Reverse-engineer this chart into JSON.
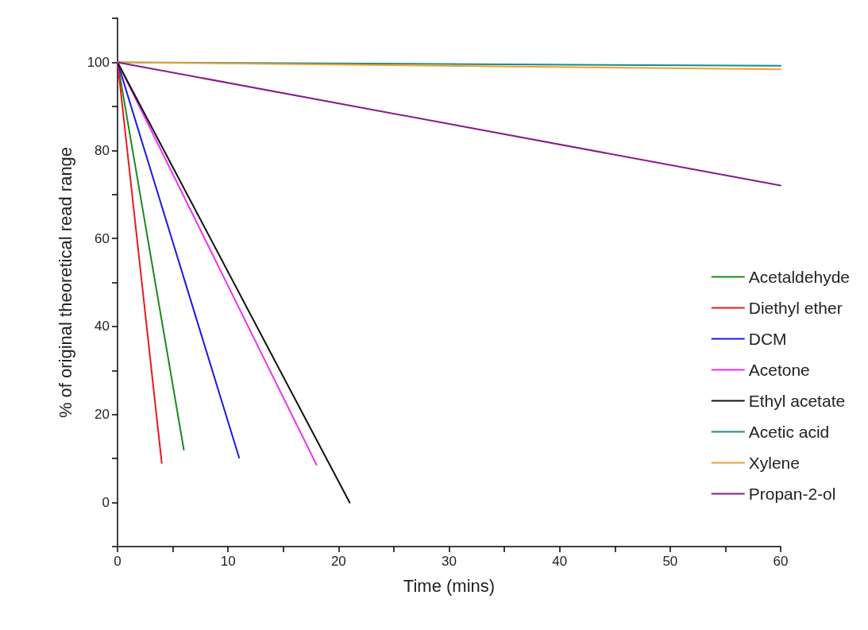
{
  "chart_data": {
    "type": "line",
    "xlabel": "Time (mins)",
    "ylabel": "% of original theoretical read range",
    "xlim": [
      0,
      60
    ],
    "xticks": [
      0,
      {
        "value": 5,
        "label": null
      },
      10,
      {
        "value": 15,
        "label": null
      },
      20,
      {
        "value": 25,
        "label": null
      },
      30,
      {
        "value": 35,
        "label": null
      },
      40,
      {
        "value": 45,
        "label": null
      },
      50,
      {
        "value": 55,
        "label": null
      },
      60
    ],
    "ylim": [
      -10,
      110
    ],
    "yticks": [
      {
        "value": -10,
        "label": null
      },
      0,
      {
        "value": 10,
        "label": null
      },
      20,
      {
        "value": 30,
        "label": null
      },
      40,
      {
        "value": 50,
        "label": null
      },
      60,
      {
        "value": 70,
        "label": null
      },
      80,
      {
        "value": 90,
        "label": null
      },
      100,
      {
        "value": 110,
        "label": null
      }
    ],
    "grid": false,
    "legend": "right",
    "marker": "none",
    "line_style": "solid",
    "series": [
      {
        "name": "Acetaldehyde",
        "color": "#1a8a1a",
        "x": [
          0,
          6
        ],
        "values": [
          100,
          12
        ]
      },
      {
        "name": "Diethyl ether",
        "color": "#e8191e",
        "x": [
          0,
          4
        ],
        "values": [
          100,
          9
        ]
      },
      {
        "name": "DCM",
        "color": "#1a1ae6",
        "x": [
          0,
          11
        ],
        "values": [
          100,
          10.2
        ]
      },
      {
        "name": "Acetone",
        "color": "#f030f0",
        "x": [
          0,
          18
        ],
        "values": [
          100,
          8.6
        ]
      },
      {
        "name": "Ethyl acetate",
        "color": "#111111",
        "x": [
          0,
          21
        ],
        "values": [
          100,
          0
        ]
      },
      {
        "name": "Acetic acid",
        "color": "#1a8a8a",
        "x": [
          0,
          60
        ],
        "values": [
          100,
          99.2
        ]
      },
      {
        "name": "Xylene",
        "color": "#f0a030",
        "x": [
          0,
          60
        ],
        "values": [
          100,
          98.4
        ]
      },
      {
        "name": "Propan-2-ol",
        "color": "#8a1a8a",
        "x": [
          0,
          60
        ],
        "values": [
          100,
          72
        ]
      }
    ]
  }
}
